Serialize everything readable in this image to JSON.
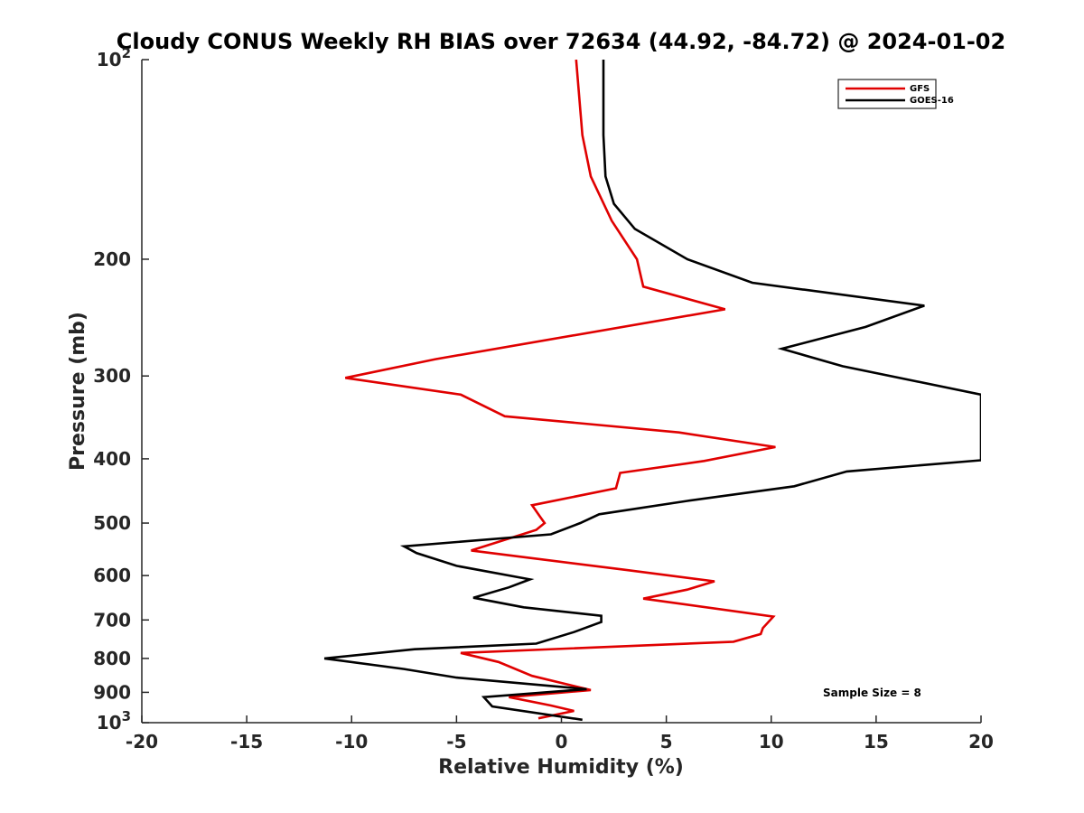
{
  "chart_data": {
    "type": "line",
    "title": "Cloudy CONUS Weekly RH BIAS over 72634 (44.92, -84.72) @ 2024-01-02",
    "xlabel": "Relative Humidity (%)",
    "ylabel": "Pressure (mb)",
    "xlim": [
      -20,
      20
    ],
    "ylim": [
      100,
      1000
    ],
    "y_scale": "log",
    "y_reversed": true,
    "grid": false,
    "legend_position": "top-right",
    "x_ticks": [
      -20,
      -15,
      -10,
      -5,
      0,
      5,
      10,
      15,
      20
    ],
    "x_tick_labels": [
      "-20",
      "-15",
      "-10",
      "-5",
      "0",
      "5",
      "10",
      "15",
      "20"
    ],
    "y_ticks": [
      {
        "value": 100,
        "label": "10",
        "sup": "2"
      },
      {
        "value": 200,
        "label": "200",
        "sup": ""
      },
      {
        "value": 300,
        "label": "300",
        "sup": ""
      },
      {
        "value": 400,
        "label": "400",
        "sup": ""
      },
      {
        "value": 500,
        "label": "500",
        "sup": ""
      },
      {
        "value": 600,
        "label": "600",
        "sup": ""
      },
      {
        "value": 700,
        "label": "700",
        "sup": ""
      },
      {
        "value": 800,
        "label": "800",
        "sup": ""
      },
      {
        "value": 900,
        "label": "900",
        "sup": ""
      },
      {
        "value": 1000,
        "label": "10",
        "sup": "3"
      }
    ],
    "series": [
      {
        "name": "GFS",
        "color": "#e00000",
        "points": [
          [
            0.7,
            100
          ],
          [
            1.0,
            130
          ],
          [
            1.4,
            150
          ],
          [
            2.4,
            175
          ],
          [
            3.6,
            200
          ],
          [
            3.9,
            220
          ],
          [
            7.8,
            238
          ],
          [
            -6.0,
            283
          ],
          [
            -10.3,
            302
          ],
          [
            -4.8,
            320
          ],
          [
            -2.7,
            345
          ],
          [
            5.6,
            365
          ],
          [
            10.2,
            384
          ],
          [
            6.8,
            403
          ],
          [
            2.8,
            420
          ],
          [
            2.6,
            443
          ],
          [
            -1.4,
            470
          ],
          [
            -1.0,
            490
          ],
          [
            -0.8,
            500
          ],
          [
            -1.2,
            512
          ],
          [
            -4.3,
            550
          ],
          [
            3.0,
            588
          ],
          [
            7.3,
            612
          ],
          [
            6.0,
            630
          ],
          [
            3.9,
            650
          ],
          [
            10.1,
            692
          ],
          [
            9.6,
            720
          ],
          [
            9.5,
            735
          ],
          [
            8.2,
            755
          ],
          [
            -4.8,
            785
          ],
          [
            -3.0,
            810
          ],
          [
            -1.4,
            850
          ],
          [
            1.4,
            893
          ],
          [
            -2.5,
            915
          ],
          [
            -0.5,
            942
          ],
          [
            0.6,
            960
          ],
          [
            -1.1,
            985
          ]
        ]
      },
      {
        "name": "GOES-16",
        "color": "#000000",
        "points": [
          [
            2.0,
            100
          ],
          [
            2.0,
            130
          ],
          [
            2.1,
            150
          ],
          [
            2.5,
            165
          ],
          [
            3.5,
            180
          ],
          [
            6.0,
            200
          ],
          [
            9.1,
            217
          ],
          [
            17.3,
            235
          ],
          [
            14.5,
            253
          ],
          [
            10.5,
            273
          ],
          [
            13.4,
            290
          ],
          [
            20.0,
            320
          ],
          [
            20.0,
            350
          ],
          [
            20.0,
            380
          ],
          [
            20.0,
            402
          ],
          [
            13.6,
            418
          ],
          [
            11.1,
            440
          ],
          [
            6.0,
            463
          ],
          [
            1.8,
            485
          ],
          [
            0.9,
            500
          ],
          [
            -0.5,
            520
          ],
          [
            -7.5,
            542
          ],
          [
            -6.9,
            555
          ],
          [
            -5.0,
            580
          ],
          [
            -1.5,
            608
          ],
          [
            -2.5,
            625
          ],
          [
            -4.2,
            648
          ],
          [
            -1.8,
            670
          ],
          [
            1.9,
            690
          ],
          [
            1.9,
            705
          ],
          [
            0.6,
            730
          ],
          [
            -1.2,
            760
          ],
          [
            -7.0,
            775
          ],
          [
            -11.3,
            800
          ],
          [
            -7.5,
            830
          ],
          [
            -5.0,
            855
          ],
          [
            1.2,
            890
          ],
          [
            -3.7,
            915
          ],
          [
            -3.3,
            945
          ],
          [
            1.0,
            990
          ]
        ]
      }
    ],
    "annotations": [
      "Sample Size = 8"
    ]
  }
}
